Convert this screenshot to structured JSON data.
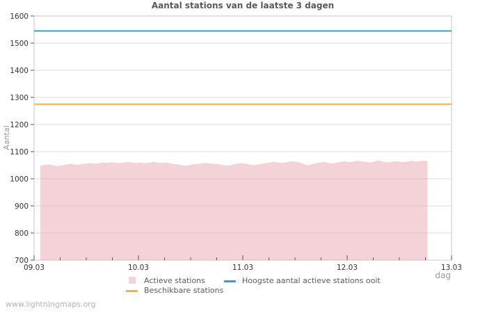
{
  "page": {
    "footer": "www.lightningmaps.org"
  },
  "chart_data": {
    "type": "area",
    "title": "Aantal stations van de laatste 3 dagen",
    "xlabel": "dag",
    "ylabel": "Aantal",
    "ylim": [
      700,
      1600
    ],
    "y_ticks": [
      700,
      800,
      900,
      1000,
      1100,
      1200,
      1300,
      1400,
      1500,
      1600
    ],
    "x_tick_labels": [
      "09.03",
      "10.03",
      "11.03",
      "12.03",
      "13.03"
    ],
    "x_minor_ticks_per_day": 4,
    "grid": true,
    "legend_position": "bottom",
    "colors": {
      "grid": "#d9d9d9",
      "border": "#c9c9c9",
      "tick": "#555555",
      "tick_label": "#333333"
    },
    "series": [
      {
        "name": "Actieve stations",
        "kind": "area",
        "color": "#e8aab4",
        "opacity": 0.52,
        "points": [
          [
            0.06,
            1048
          ],
          [
            0.1,
            1051
          ],
          [
            0.14,
            1053
          ],
          [
            0.18,
            1050
          ],
          [
            0.22,
            1047
          ],
          [
            0.26,
            1049
          ],
          [
            0.3,
            1052
          ],
          [
            0.34,
            1055
          ],
          [
            0.38,
            1053
          ],
          [
            0.42,
            1052
          ],
          [
            0.46,
            1054
          ],
          [
            0.5,
            1056
          ],
          [
            0.54,
            1058
          ],
          [
            0.58,
            1055
          ],
          [
            0.62,
            1057
          ],
          [
            0.66,
            1060
          ],
          [
            0.7,
            1058
          ],
          [
            0.74,
            1061
          ],
          [
            0.78,
            1059
          ],
          [
            0.82,
            1058
          ],
          [
            0.86,
            1060
          ],
          [
            0.9,
            1062
          ],
          [
            0.94,
            1060
          ],
          [
            0.98,
            1058
          ],
          [
            1.02,
            1060
          ],
          [
            1.06,
            1057
          ],
          [
            1.1,
            1059
          ],
          [
            1.14,
            1062
          ],
          [
            1.18,
            1060
          ],
          [
            1.22,
            1058
          ],
          [
            1.26,
            1060
          ],
          [
            1.3,
            1057
          ],
          [
            1.34,
            1054
          ],
          [
            1.38,
            1053
          ],
          [
            1.42,
            1050
          ],
          [
            1.46,
            1048
          ],
          [
            1.5,
            1052
          ],
          [
            1.54,
            1054
          ],
          [
            1.58,
            1055
          ],
          [
            1.62,
            1057
          ],
          [
            1.66,
            1058
          ],
          [
            1.7,
            1056
          ],
          [
            1.74,
            1055
          ],
          [
            1.78,
            1053
          ],
          [
            1.82,
            1050
          ],
          [
            1.86,
            1048
          ],
          [
            1.9,
            1052
          ],
          [
            1.94,
            1055
          ],
          [
            1.98,
            1058
          ],
          [
            2.02,
            1056
          ],
          [
            2.06,
            1053
          ],
          [
            2.1,
            1050
          ],
          [
            2.14,
            1052
          ],
          [
            2.18,
            1055
          ],
          [
            2.22,
            1058
          ],
          [
            2.26,
            1060
          ],
          [
            2.3,
            1062
          ],
          [
            2.34,
            1060
          ],
          [
            2.38,
            1058
          ],
          [
            2.42,
            1061
          ],
          [
            2.46,
            1064
          ],
          [
            2.5,
            1063
          ],
          [
            2.54,
            1060
          ],
          [
            2.58,
            1055
          ],
          [
            2.62,
            1050
          ],
          [
            2.66,
            1053
          ],
          [
            2.7,
            1057
          ],
          [
            2.74,
            1060
          ],
          [
            2.78,
            1062
          ],
          [
            2.82,
            1058
          ],
          [
            2.86,
            1056
          ],
          [
            2.9,
            1059
          ],
          [
            2.94,
            1062
          ],
          [
            2.98,
            1064
          ],
          [
            3.02,
            1061
          ],
          [
            3.06,
            1063
          ],
          [
            3.1,
            1066
          ],
          [
            3.14,
            1064
          ],
          [
            3.18,
            1062
          ],
          [
            3.22,
            1060
          ],
          [
            3.26,
            1064
          ],
          [
            3.3,
            1067
          ],
          [
            3.34,
            1063
          ],
          [
            3.38,
            1060
          ],
          [
            3.42,
            1062
          ],
          [
            3.46,
            1065
          ],
          [
            3.5,
            1063
          ],
          [
            3.54,
            1061
          ],
          [
            3.58,
            1064
          ],
          [
            3.62,
            1066
          ],
          [
            3.66,
            1063
          ],
          [
            3.7,
            1065
          ],
          [
            3.74,
            1067
          ],
          [
            3.77,
            1065
          ]
        ]
      },
      {
        "name": "Beschikbare stations",
        "kind": "hline",
        "color": "#f2b33c",
        "value": 1275
      },
      {
        "name": "Hoogste aantal actieve stations ooit",
        "kind": "hline",
        "color": "#27a5c6",
        "value": 1545
      }
    ]
  },
  "legend": {
    "items": [
      {
        "label": "Actieve stations",
        "swatch": "square",
        "color": "#f3d3d8"
      },
      {
        "label": "Beschikbare stations",
        "swatch": "line",
        "color": "#f2b33c"
      },
      {
        "label": "Hoogste aantal actieve stations ooit",
        "swatch": "line",
        "color": "#27a5c6"
      }
    ]
  }
}
